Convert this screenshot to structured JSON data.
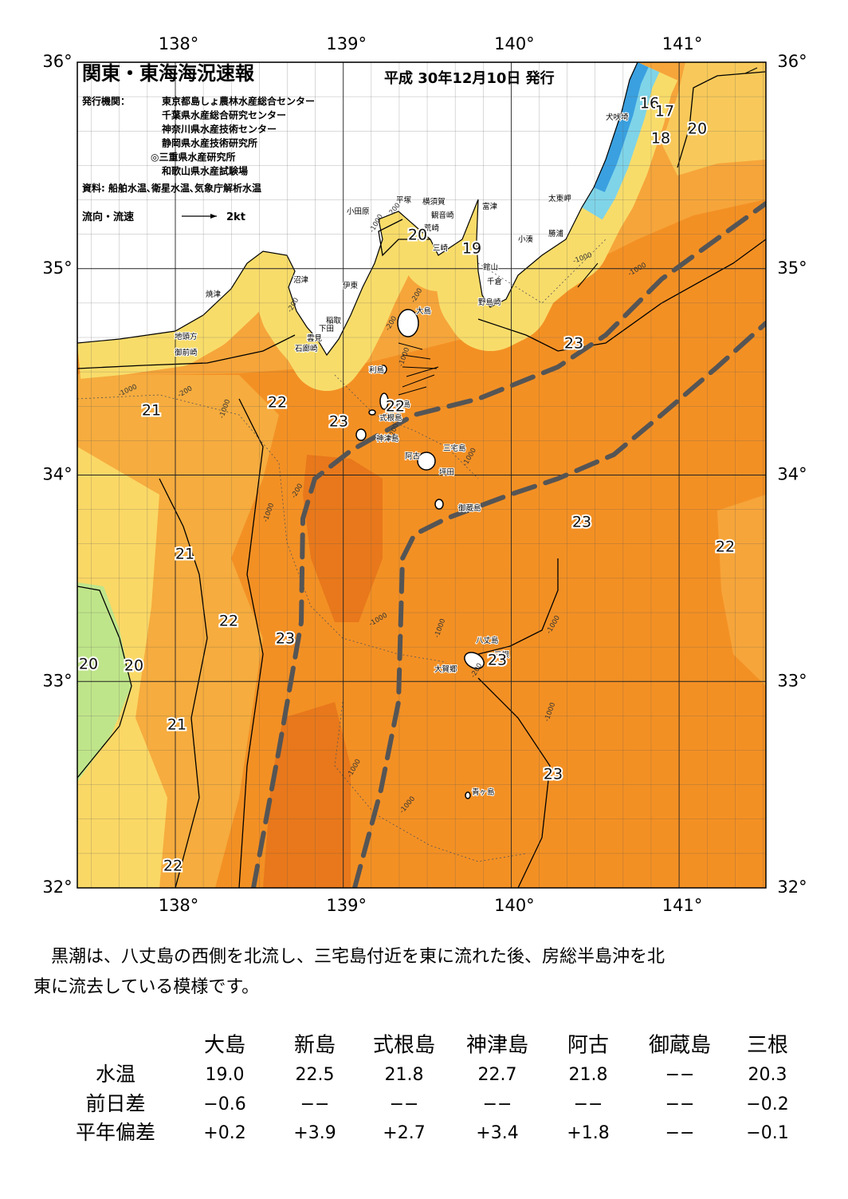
{
  "header": {
    "title": "関東・東海海況速報",
    "date": "平成 30年12月10日 発行",
    "issuer_label": "発行機関：",
    "issuers": [
      "東京都島しょ農林水産総合センター",
      "千葉県水産総合研究センター",
      "神奈川県水産技術センター",
      "静岡県水産技術研究所",
      "◎三重県水産研究所",
      "和歌山県水産試験場"
    ],
    "source": "資料: 船舶水温､衛星水温､気象庁解析水温",
    "legend_label": "流向・流速",
    "legend_scale": "2kt"
  },
  "map": {
    "lon_ticks": [
      {
        "value": 138,
        "label": "138°"
      },
      {
        "value": 139,
        "label": "139°"
      },
      {
        "value": 140,
        "label": "140°"
      },
      {
        "value": 141,
        "label": "141°"
      }
    ],
    "lat_ticks": [
      {
        "value": 36,
        "label": "36°"
      },
      {
        "value": 35,
        "label": "35°"
      },
      {
        "value": 34,
        "label": "34°"
      },
      {
        "value": 33,
        "label": "33°"
      },
      {
        "value": 32,
        "label": "32°"
      }
    ],
    "places": [
      "犬吠埼",
      "太東岬",
      "勝浦",
      "小湊",
      "館山",
      "千倉",
      "野島崎",
      "富津",
      "横須賀",
      "観音崎",
      "荒崎",
      "三崎",
      "平塚",
      "小田原",
      "沼津",
      "伊東",
      "焼津",
      "大島",
      "稲取",
      "下田",
      "雲見",
      "石廊崎",
      "地頭方",
      "御前崎",
      "利島",
      "新島",
      "式根島",
      "神津島",
      "三宅島",
      "阿古",
      "坪田",
      "御蔵島",
      "八丈島",
      "三根",
      "大賀郷",
      "青ヶ島"
    ],
    "temperature_labels": [
      "16",
      "17",
      "18",
      "20",
      "20",
      "19",
      "23",
      "21",
      "22",
      "23",
      "22",
      "23",
      "22",
      "21",
      "22",
      "23",
      "20",
      "20",
      "23",
      "21",
      "23",
      "22"
    ],
    "depth_labels": [
      "-1000",
      "-200",
      "-1000",
      "-200",
      "-200",
      "-1000",
      "-200",
      "-1000",
      "-200",
      "-1000",
      "-200",
      "-1000",
      "-1000",
      "-1000",
      "-1000",
      "-200",
      "-1000",
      "-1000",
      "-1000",
      "-1000",
      "-200",
      "-1000"
    ]
  },
  "description": [
    "黒潮は、八丈島の西側を北流し、三宅島付近を東に流れた後、房総半島沖を北",
    "東に流去している模様です。"
  ],
  "table": {
    "columns": [
      "大島",
      "新島",
      "式根島",
      "神津島",
      "阿古",
      "御蔵島",
      "三根"
    ],
    "rows": [
      {
        "label": "水温",
        "cells": [
          "19.0",
          "22.5",
          "21.8",
          "22.7",
          "21.8",
          "−−",
          "20.3"
        ]
      },
      {
        "label": "前日差",
        "cells": [
          "−0.6",
          "−−",
          "−−",
          "−−",
          "−−",
          "−−",
          "−0.2"
        ]
      },
      {
        "label": "平年偏差",
        "cells": [
          "+0.2",
          "+3.9",
          "+2.7",
          "+3.4",
          "+1.8",
          "−−",
          "−0.1"
        ]
      }
    ]
  }
}
